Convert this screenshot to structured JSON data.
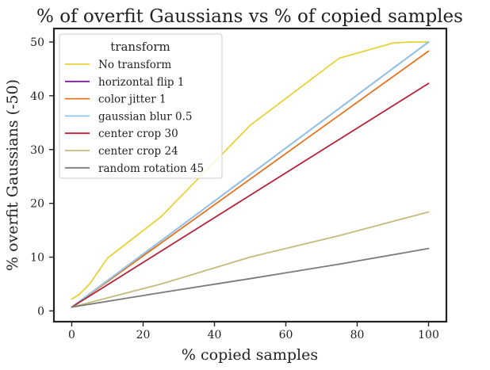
{
  "chart_data": {
    "type": "line",
    "title": "% of overfit Gaussians vs % of copied samples",
    "xlabel": "% copied samples",
    "ylabel": "% overfit Gaussians (-50)",
    "xlim": [
      -5,
      105
    ],
    "ylim": [
      -2,
      52.5
    ],
    "xticks": [
      0,
      20,
      40,
      60,
      80,
      100
    ],
    "yticks": [
      0,
      10,
      20,
      30,
      40,
      50
    ],
    "grid": false,
    "legend": {
      "title": "transform",
      "placement": "top-left"
    },
    "series": [
      {
        "name": "No transform",
        "color": "#E8D23A",
        "x": [
          0,
          2,
          5,
          10,
          25,
          50,
          75,
          90,
          95,
          100
        ],
        "y": [
          2.2,
          3.0,
          5.0,
          9.8,
          17.5,
          34.5,
          47.0,
          49.8,
          50.0,
          50.0
        ]
      },
      {
        "name": "horizontal flip 1",
        "color": "#7B1FA2",
        "x": [
          0,
          100
        ],
        "y": [
          0.7,
          50.0
        ]
      },
      {
        "name": "color jitter 1",
        "color": "#E8731F",
        "x": [
          0,
          100
        ],
        "y": [
          0.7,
          48.3
        ]
      },
      {
        "name": "gaussian blur 0.5",
        "color": "#8EC8E8",
        "x": [
          0,
          100
        ],
        "y": [
          0.7,
          50.0
        ]
      },
      {
        "name": "center crop 30",
        "color": "#B5233A",
        "x": [
          0,
          100
        ],
        "y": [
          0.7,
          42.3
        ]
      },
      {
        "name": "center crop 24",
        "color": "#C4BB7E",
        "x": [
          0,
          25,
          50,
          75,
          100
        ],
        "y": [
          0.7,
          5.0,
          10.0,
          14.0,
          18.4
        ]
      },
      {
        "name": "random rotation 45",
        "color": "#7A7A7A",
        "x": [
          0,
          25,
          50,
          75,
          100
        ],
        "y": [
          0.7,
          3.4,
          6.0,
          8.7,
          11.6
        ]
      }
    ]
  }
}
